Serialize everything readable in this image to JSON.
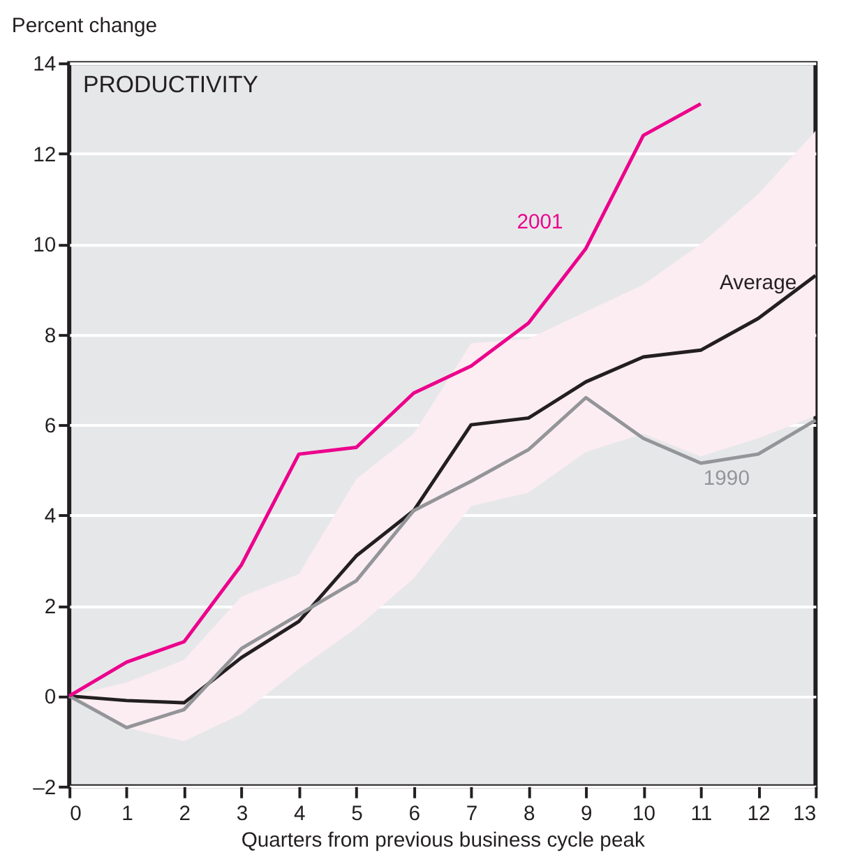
{
  "chart_data": {
    "type": "line",
    "title": "PRODUCTIVITY",
    "xlabel": "Quarters from previous business cycle peak",
    "ylabel": "Percent change",
    "x": [
      0,
      1,
      2,
      3,
      4,
      5,
      6,
      7,
      8,
      9,
      10,
      11,
      12,
      13
    ],
    "series": [
      {
        "name": "Average",
        "color": "#231f20",
        "values": [
          0,
          -0.1,
          -0.15,
          0.85,
          1.65,
          3.1,
          4.1,
          6.0,
          6.15,
          6.95,
          7.5,
          7.65,
          8.35,
          9.3
        ],
        "lower": [
          0,
          -0.7,
          -1.0,
          -0.4,
          0.6,
          1.5,
          2.6,
          4.2,
          4.5,
          5.4,
          5.8,
          5.3,
          5.7,
          6.2
        ],
        "upper": [
          0,
          0.3,
          0.8,
          2.2,
          2.7,
          4.8,
          5.8,
          7.8,
          7.9,
          8.5,
          9.1,
          10.0,
          11.1,
          12.5
        ]
      },
      {
        "name": "1990",
        "color": "#939598",
        "values": [
          0,
          -0.7,
          -0.3,
          1.05,
          1.8,
          2.55,
          4.1,
          4.75,
          5.45,
          6.6,
          5.7,
          5.15,
          5.35,
          6.1
        ]
      },
      {
        "name": "2001",
        "color": "#ec008c",
        "values": [
          0,
          0.75,
          1.2,
          2.9,
          5.35,
          5.5,
          6.7,
          7.3,
          8.25,
          9.9,
          12.4,
          13.1,
          null,
          null
        ]
      }
    ],
    "xlim": [
      0,
      13
    ],
    "xticks": [
      0,
      1,
      2,
      3,
      4,
      5,
      6,
      7,
      8,
      9,
      10,
      11,
      12,
      13
    ],
    "ylim": [
      -2,
      14
    ],
    "yticks": [
      {
        "value": -2,
        "label": "–2"
      },
      0,
      2,
      4,
      6,
      8,
      10,
      12,
      14
    ],
    "grid": "y",
    "marker": "none",
    "line_style": "solid"
  }
}
